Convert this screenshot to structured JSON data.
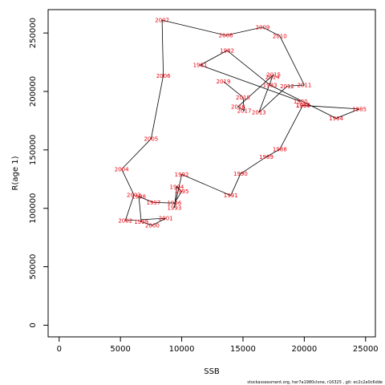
{
  "chart_data": {
    "type": "line",
    "xlabel": "SSB",
    "ylabel": "R(age 1)",
    "xlim": [
      -900,
      25800
    ],
    "ylim": [
      -10000,
      270000
    ],
    "x_ticks": [
      "0",
      "5000",
      "10000",
      "15000",
      "20000",
      "25000"
    ],
    "x_tick_values": [
      0,
      5000,
      10000,
      15000,
      20000,
      25000
    ],
    "y_ticks": [
      "0",
      "50000",
      "100000",
      "150000",
      "200000",
      "250000"
    ],
    "y_tick_values": [
      0,
      50000,
      100000,
      150000,
      200000,
      250000
    ],
    "footer": "stockassessment.org, her7a1980clone, r16325 , git: ec2c2a0c6dde",
    "points": [
      {
        "year": "1980",
        "x": 19700,
        "y": 191500
      },
      {
        "year": "1981",
        "x": 11500,
        "y": 222500
      },
      {
        "year": "1982",
        "x": 13700,
        "y": 235000
      },
      {
        "year": "1983",
        "x": 17200,
        "y": 205500
      },
      {
        "year": "1984",
        "x": 22600,
        "y": 177000
      },
      {
        "year": "1985",
        "x": 24500,
        "y": 185000
      },
      {
        "year": "1986",
        "x": 19900,
        "y": 188000
      },
      {
        "year": "1987",
        "x": 19900,
        "y": 188500
      },
      {
        "year": "1988",
        "x": 18000,
        "y": 150500
      },
      {
        "year": "1989",
        "x": 16900,
        "y": 144000
      },
      {
        "year": "1990",
        "x": 14800,
        "y": 129500
      },
      {
        "year": "1991",
        "x": 14000,
        "y": 111000
      },
      {
        "year": "1992",
        "x": 10000,
        "y": 129000
      },
      {
        "year": "1993",
        "x": 9400,
        "y": 100500
      },
      {
        "year": "1994",
        "x": 9600,
        "y": 118500
      },
      {
        "year": "1995",
        "x": 10000,
        "y": 114500
      },
      {
        "year": "1996",
        "x": 9400,
        "y": 104500
      },
      {
        "year": "1997",
        "x": 7700,
        "y": 105000
      },
      {
        "year": "1998",
        "x": 6500,
        "y": 110000
      },
      {
        "year": "1999",
        "x": 6700,
        "y": 88500
      },
      {
        "year": "2000",
        "x": 7600,
        "y": 85500
      },
      {
        "year": "2001",
        "x": 8700,
        "y": 91500
      },
      {
        "year": "2002",
        "x": 5400,
        "y": 89500
      },
      {
        "year": "2003",
        "x": 6100,
        "y": 111500
      },
      {
        "year": "2004",
        "x": 5100,
        "y": 133500
      },
      {
        "year": "2005",
        "x": 7500,
        "y": 159500
      },
      {
        "year": "2006",
        "x": 8500,
        "y": 213500
      },
      {
        "year": "2007",
        "x": 8400,
        "y": 261000
      },
      {
        "year": "2008",
        "x": 13600,
        "y": 248000
      },
      {
        "year": "2009",
        "x": 16600,
        "y": 255000
      },
      {
        "year": "2010",
        "x": 18000,
        "y": 247500
      },
      {
        "year": "2011",
        "x": 20000,
        "y": 205500
      },
      {
        "year": "2012",
        "x": 18600,
        "y": 204500
      },
      {
        "year": "2013",
        "x": 16300,
        "y": 182000
      },
      {
        "year": "2014",
        "x": 17400,
        "y": 212500
      },
      {
        "year": "2015",
        "x": 17500,
        "y": 214500
      },
      {
        "year": "2016",
        "x": 14600,
        "y": 187000
      },
      {
        "year": "2017",
        "x": 15100,
        "y": 183500
      },
      {
        "year": "2018",
        "x": 15000,
        "y": 195000
      },
      {
        "year": "2019",
        "x": 13400,
        "y": 208500
      }
    ],
    "colors": {
      "line": "#000000",
      "label": "#e8000b",
      "frame": "#000000"
    }
  }
}
